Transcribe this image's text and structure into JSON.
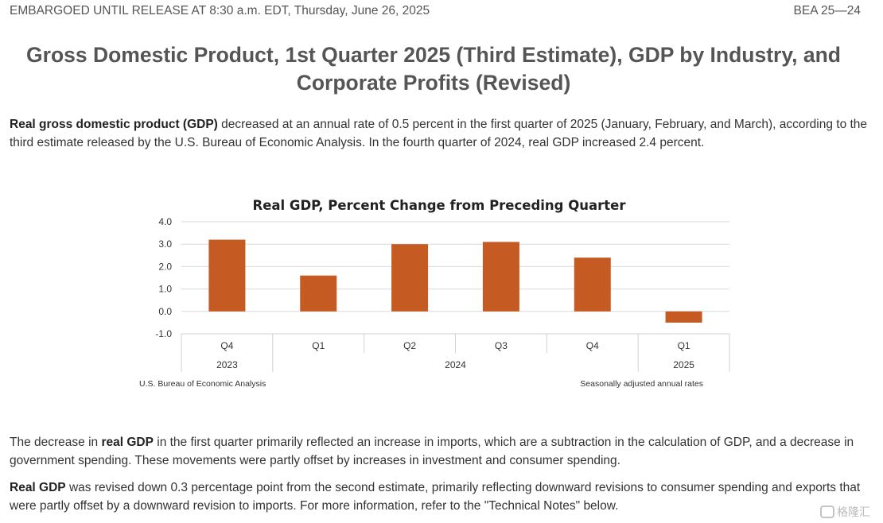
{
  "header": {
    "embargo": "EMBARGOED UNTIL RELEASE AT 8:30 a.m. EDT, Thursday, June 26, 2025",
    "release_id": "BEA 25—24"
  },
  "title": "Gross Domestic Product, 1st Quarter 2025 (Third Estimate), GDP by Industry, and Corporate Profits (Revised)",
  "intro": {
    "lead": "Real gross domestic product (GDP)",
    "text": " decreased at an annual rate of 0.5 percent in the first quarter of 2025 (January, February, and March), according to the third estimate released by the U.S. Bureau of Economic Analysis. In the fourth quarter of 2024, real GDP increased 2.4 percent."
  },
  "paragraph2": {
    "pre": "The decrease in ",
    "bold": "real GDP",
    "text": " in the first quarter primarily reflected an increase in imports, which are a subtraction in the calculation of GDP, and a decrease in government spending. These movements were partly offset by increases in investment and consumer spending."
  },
  "paragraph3": {
    "bold": "Real GDP",
    "text": " was revised down 0.3 percentage point from the second estimate, primarily reflecting downward revisions to consumer spending and exports that were partly offset by a downward revision to imports. For more information, refer to the \"Technical Notes\" below."
  },
  "chart_data": {
    "type": "bar",
    "title": "Real GDP, Percent Change from Preceding Quarter",
    "categories": [
      "Q4",
      "Q1",
      "Q2",
      "Q3",
      "Q4",
      "Q1"
    ],
    "years": [
      {
        "label": "2023",
        "span": [
          0,
          0
        ]
      },
      {
        "label": "2024",
        "span": [
          1,
          4
        ]
      },
      {
        "label": "2025",
        "span": [
          5,
          5
        ]
      }
    ],
    "values": [
      3.2,
      1.6,
      3.0,
      3.1,
      2.4,
      -0.5
    ],
    "ylim": [
      -1.0,
      4.0
    ],
    "yticks": [
      "4.0",
      "3.0",
      "2.0",
      "1.0",
      "0.0",
      "-1.0"
    ],
    "xlabel": "",
    "ylabel": "",
    "grid": true,
    "bar_color": "#c55a22",
    "source": "U.S. Bureau of Economic Analysis",
    "note": "Seasonally adjusted annual rates"
  },
  "watermark": "格隆汇"
}
